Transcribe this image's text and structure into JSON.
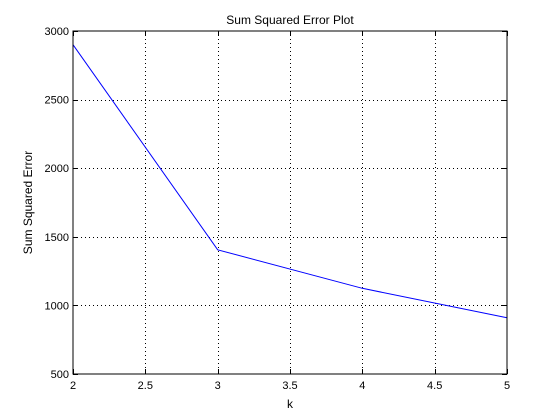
{
  "chart_data": {
    "type": "line",
    "title": "Sum Squared Error Plot",
    "xlabel": "k",
    "ylabel": "Sum Squared Error",
    "xlim": [
      2,
      5
    ],
    "ylim": [
      500,
      3000
    ],
    "xticks": [
      2,
      2.5,
      3,
      3.5,
      4,
      4.5,
      5
    ],
    "xtick_labels": [
      "2",
      "2.5",
      "3",
      "3.5",
      "4",
      "4.5",
      "5"
    ],
    "yticks": [
      500,
      1000,
      1500,
      2000,
      2500,
      3000
    ],
    "ytick_labels": [
      "500",
      "1000",
      "1500",
      "2000",
      "2500",
      "3000"
    ],
    "grid": true,
    "series": [
      {
        "x": [
          2,
          3,
          4,
          5
        ],
        "y": [
          2900,
          1405,
          1125,
          910
        ],
        "color": "#0000ff"
      }
    ]
  }
}
